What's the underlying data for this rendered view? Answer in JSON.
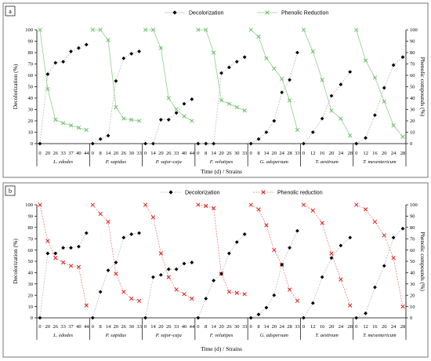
{
  "panels": [
    {
      "label": "a",
      "legend": {
        "decolor": "Decolorization",
        "phenolic": "Phenolic Reduction"
      },
      "ylabel_left": "Decolorization (%)",
      "ylabel_right": "Phenolic compounds (%)",
      "xlabel": "Time (d) / Strains",
      "yticks": [
        0,
        10,
        20,
        30,
        40,
        50,
        60,
        70,
        80,
        90,
        100
      ],
      "phenolic_style": "green"
    },
    {
      "label": "b",
      "legend": {
        "decolor": "Decolorization",
        "phenolic": "Phenolic reduction"
      },
      "ylabel_left": "Decolorization (%)",
      "ylabel_right": "Phenolic compounds (%)",
      "xlabel": "Time (d) / Strains",
      "yticks": [
        0,
        10,
        20,
        30,
        40,
        50,
        60,
        70,
        80,
        90,
        100
      ],
      "phenolic_style": "red"
    }
  ],
  "chart_data": [
    {
      "type": "line",
      "panel": "a",
      "ylim": [
        0,
        100
      ],
      "groups": [
        {
          "strain": "L. edodes",
          "x": [
            "0",
            "20",
            "26",
            "33",
            "37",
            "40",
            "44"
          ],
          "decolorization": [
            0,
            61,
            71,
            72,
            81,
            84,
            87
          ],
          "phenolic_compounds": [
            100,
            48,
            21,
            18,
            16,
            14,
            12
          ]
        },
        {
          "strain": "P. sapidus",
          "x": [
            "0",
            "8",
            "14",
            "20",
            "26",
            "30",
            "33"
          ],
          "decolorization": [
            0,
            4,
            7,
            55,
            75,
            79,
            81
          ],
          "phenolic_compounds": [
            100,
            100,
            91,
            32,
            22,
            21,
            20
          ]
        },
        {
          "strain": "P. sajor-caju",
          "x": [
            "0",
            "14",
            "20",
            "26",
            "33",
            "40",
            "44"
          ],
          "decolorization": [
            0,
            0,
            21,
            21,
            27,
            35,
            39
          ],
          "phenolic_compounds": [
            100,
            100,
            84,
            40,
            30,
            24,
            20
          ]
        },
        {
          "strain": "F. velutipes",
          "x": [
            "0",
            "8",
            "14",
            "20",
            "26",
            "30",
            "33"
          ],
          "decolorization": [
            0,
            0,
            0,
            62,
            67,
            72,
            76
          ],
          "phenolic_compounds": [
            100,
            100,
            80,
            38,
            35,
            32,
            29
          ]
        },
        {
          "strain": "G. adspersum",
          "x": [
            "0",
            "8",
            "14",
            "20",
            "24",
            "28",
            "33"
          ],
          "decolorization": [
            0,
            4,
            10,
            20,
            45,
            56,
            80
          ],
          "phenolic_compounds": [
            100,
            94,
            75,
            66,
            57,
            38,
            12
          ]
        },
        {
          "strain": "T. aestivum",
          "x": [
            "0",
            "12",
            "16",
            "20",
            "24",
            "28"
          ],
          "decolorization": [
            0,
            10,
            22,
            42,
            52,
            63
          ],
          "phenolic_compounds": [
            100,
            81,
            56,
            29,
            22,
            7
          ]
        },
        {
          "strain": "T. mesentericum",
          "x": [
            "0",
            "12",
            "16",
            "20",
            "24",
            "28"
          ],
          "decolorization": [
            0,
            5,
            25,
            49,
            69,
            76
          ],
          "phenolic_compounds": [
            100,
            73,
            58,
            37,
            16,
            6
          ]
        }
      ]
    },
    {
      "type": "line",
      "panel": "b",
      "ylim": [
        0,
        100
      ],
      "groups": [
        {
          "strain": "L. edodes",
          "x": [
            "0",
            "20",
            "26",
            "33",
            "37",
            "40",
            "44"
          ],
          "decolorization": [
            0,
            57,
            57,
            62,
            62,
            63,
            75
          ],
          "phenolic_compounds": [
            100,
            68,
            53,
            49,
            46,
            45,
            11
          ]
        },
        {
          "strain": "P. sapidus",
          "x": [
            "0",
            "8",
            "14",
            "20",
            "26",
            "30",
            "33"
          ],
          "decolorization": [
            0,
            23,
            42,
            49,
            71,
            74,
            75
          ],
          "phenolic_compounds": [
            100,
            92,
            85,
            39,
            23,
            17,
            15
          ]
        },
        {
          "strain": "P. sajor-caju",
          "x": [
            "0",
            "14",
            "20",
            "26",
            "33",
            "40",
            "44"
          ],
          "decolorization": [
            0,
            36,
            38,
            43,
            43,
            48,
            49
          ],
          "phenolic_compounds": [
            100,
            89,
            57,
            36,
            25,
            21,
            17
          ]
        },
        {
          "strain": "F. velutipes",
          "x": [
            "0",
            "8",
            "14",
            "20",
            "26",
            "30",
            "33"
          ],
          "decolorization": [
            0,
            17,
            33,
            39,
            57,
            67,
            74
          ],
          "phenolic_compounds": [
            100,
            99,
            97,
            39,
            23,
            22,
            21
          ]
        },
        {
          "strain": "G. adspersum",
          "x": [
            "0",
            "8",
            "14",
            "20",
            "24",
            "28",
            "33"
          ],
          "decolorization": [
            0,
            3,
            9,
            20,
            47,
            62,
            77
          ],
          "phenolic_compounds": [
            100,
            96,
            82,
            60,
            47,
            25,
            15
          ]
        },
        {
          "strain": "T. aestivum",
          "x": [
            "0",
            "12",
            "16",
            "20",
            "24",
            "28"
          ],
          "decolorization": [
            0,
            13,
            36,
            53,
            64,
            71
          ],
          "phenolic_compounds": [
            100,
            95,
            84,
            57,
            34,
            11
          ]
        },
        {
          "strain": "T. mesentericum",
          "x": [
            "0",
            "12",
            "16",
            "20",
            "24",
            "28"
          ],
          "decolorization": [
            0,
            4,
            27,
            46,
            71,
            79
          ],
          "phenolic_compounds": [
            100,
            96,
            85,
            73,
            53,
            10
          ]
        }
      ]
    }
  ]
}
